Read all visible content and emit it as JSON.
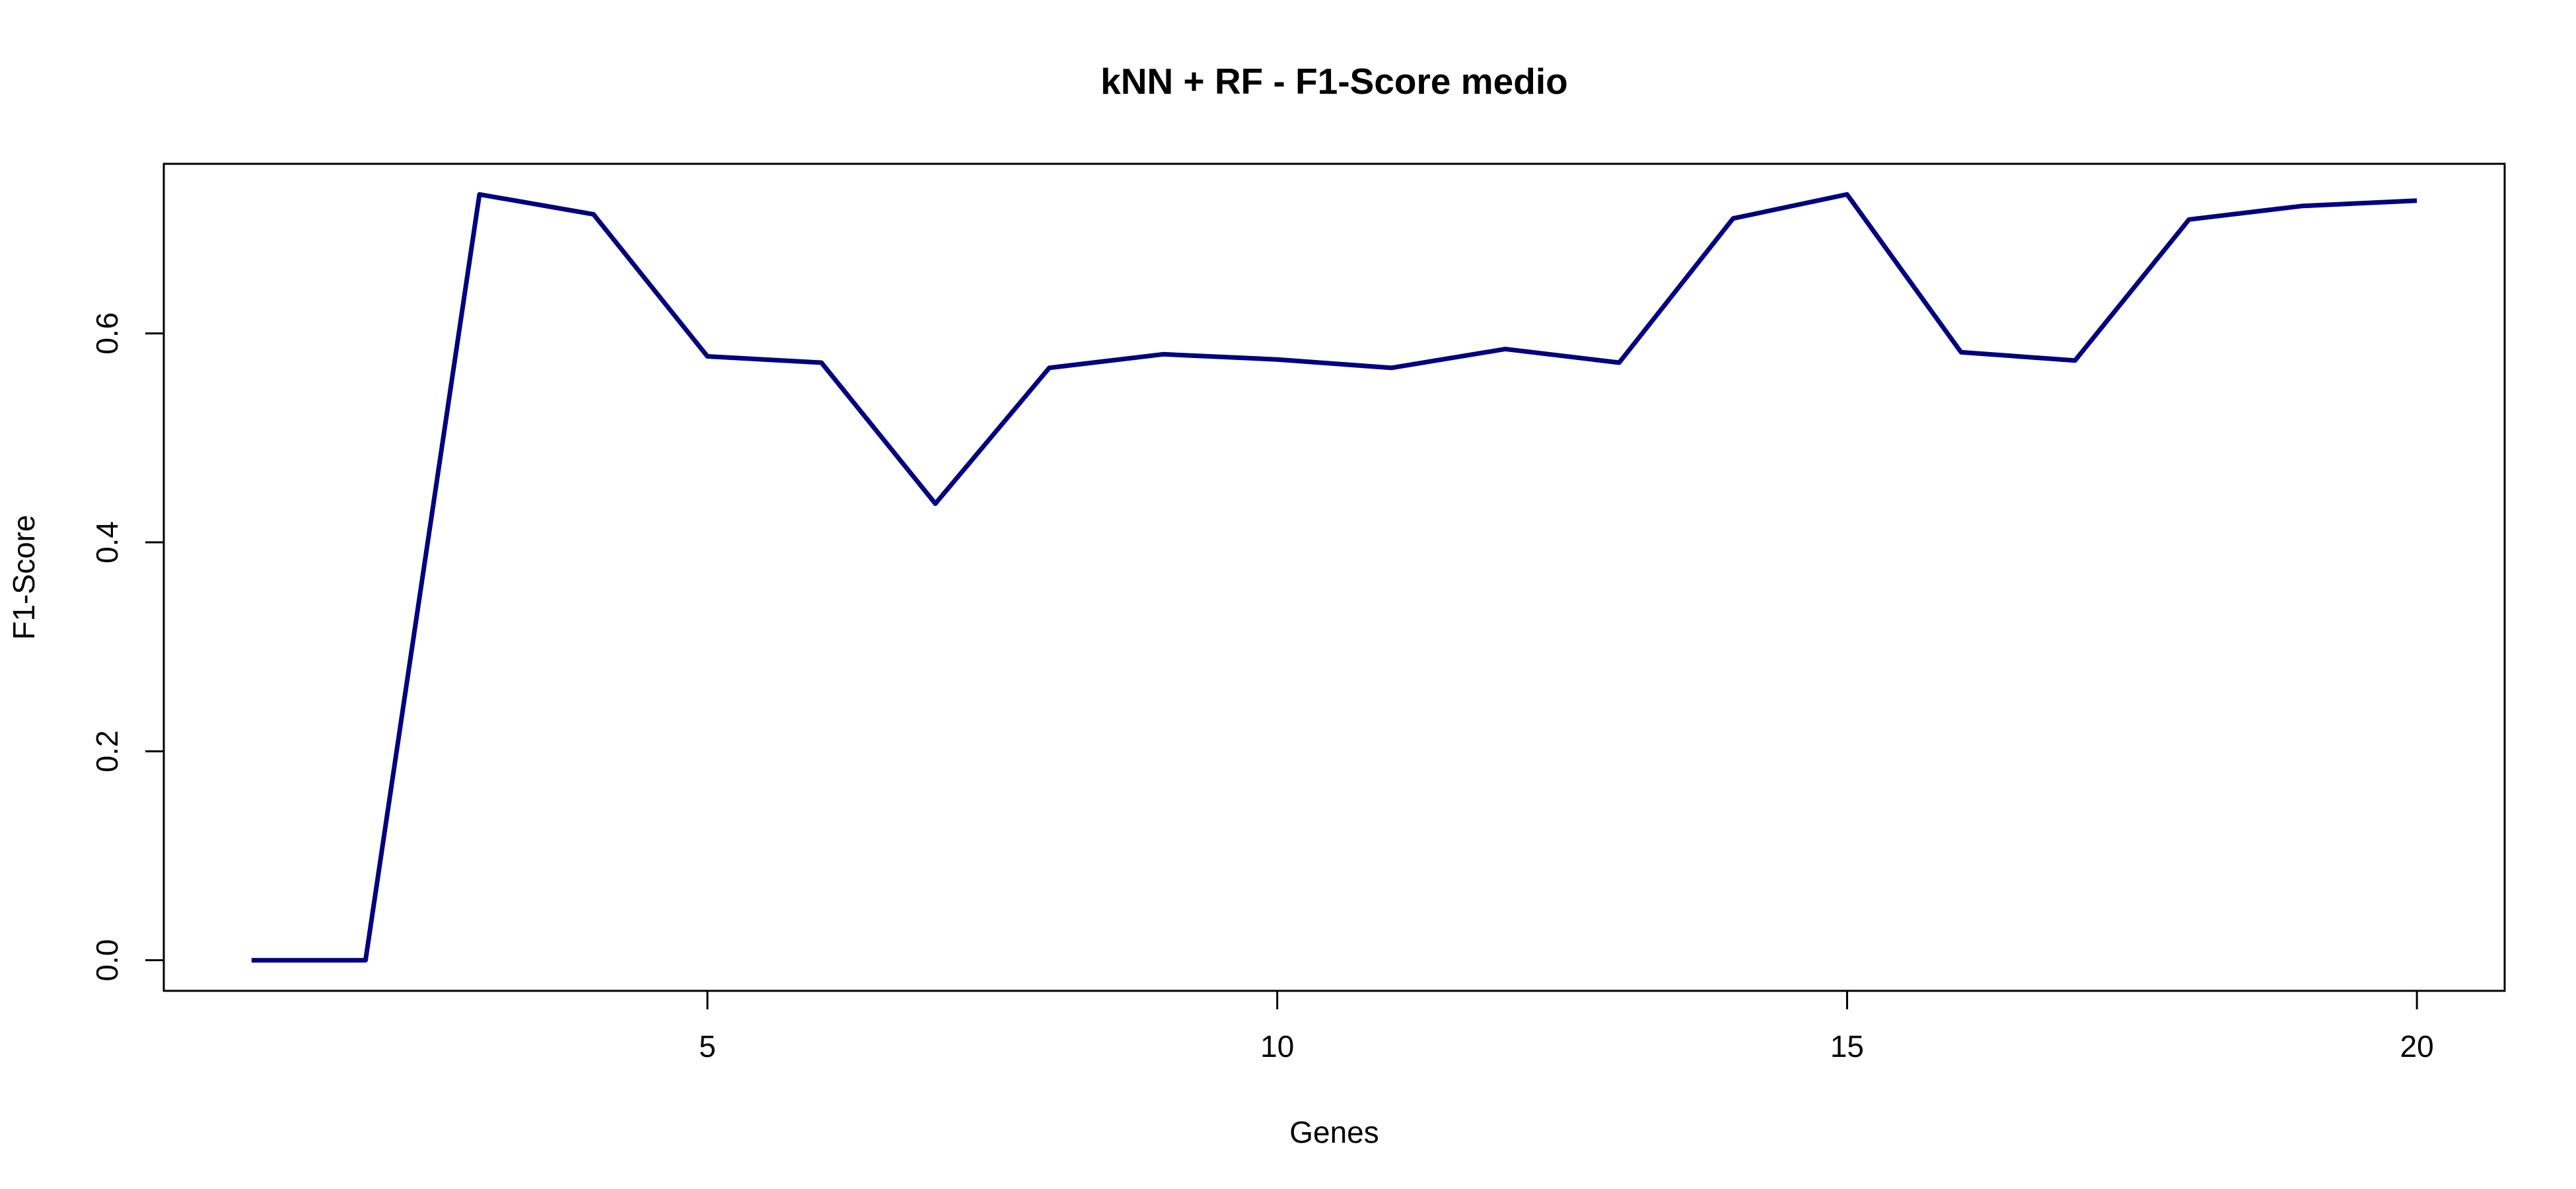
{
  "chart_data": {
    "type": "line",
    "title": "kNN + RF - F1-Score medio",
    "xlabel": "Genes",
    "ylabel": "F1-Score",
    "x": [
      1,
      2,
      3,
      4,
      5,
      6,
      7,
      8,
      9,
      10,
      11,
      12,
      13,
      14,
      15,
      16,
      17,
      18,
      19,
      20
    ],
    "series": [
      {
        "values": [
          0.0,
          0.0,
          0.733,
          0.714,
          0.578,
          0.572,
          0.437,
          0.567,
          0.58,
          0.575,
          0.567,
          0.585,
          0.572,
          0.71,
          0.733,
          0.582,
          0.574,
          0.709,
          0.722,
          0.727
        ],
        "color": "#000080"
      }
    ],
    "xlim": [
      0.23,
      20.77
    ],
    "ylim": [
      -0.0293,
      0.7623
    ],
    "xticks": [
      5,
      10,
      15,
      20
    ],
    "yticks": [
      0.0,
      0.2,
      0.4,
      0.6
    ],
    "xtick_labels": [
      "5",
      "10",
      "15",
      "20"
    ],
    "ytick_labels": [
      "0.0",
      "0.2",
      "0.4",
      "0.6"
    ],
    "grid": false,
    "legend": "none"
  }
}
